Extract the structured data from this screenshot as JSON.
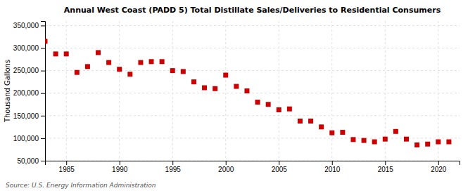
{
  "chart_data": {
    "type": "scatter",
    "title": "Annual West Coast (PADD 5) Total Distillate Sales/Deliveries to Residential Consumers",
    "ylabel": "Thousand Gallons",
    "source": "Source: U.S. Energy Information Administration",
    "color": "#cc0000",
    "marker": "square",
    "grid": true,
    "xlim": [
      1983.0,
      2022.0
    ],
    "ylim": [
      50000,
      360000
    ],
    "xticks": [
      1985,
      1990,
      1995,
      2000,
      2005,
      2010,
      2015,
      2020
    ],
    "yticks": [
      {
        "value": 50000,
        "label": "50,000"
      },
      {
        "value": 100000,
        "label": "100,000"
      },
      {
        "value": 150000,
        "label": "150,000"
      },
      {
        "value": 200000,
        "label": "200,000"
      },
      {
        "value": 250000,
        "label": "250,000"
      },
      {
        "value": 300000,
        "label": "300,000"
      },
      {
        "value": 350000,
        "label": "350,000"
      }
    ],
    "x": [
      1983,
      1984,
      1985,
      1986,
      1987,
      1988,
      1989,
      1990,
      1991,
      1992,
      1993,
      1994,
      1995,
      1996,
      1997,
      1998,
      1999,
      2000,
      2001,
      2002,
      2003,
      2004,
      2005,
      2006,
      2007,
      2008,
      2009,
      2010,
      2011,
      2012,
      2013,
      2014,
      2015,
      2016,
      2017,
      2018,
      2019,
      2020,
      2021
    ],
    "values": [
      315000,
      287000,
      287000,
      246000,
      259000,
      290000,
      268000,
      253000,
      242000,
      268000,
      270000,
      270000,
      250000,
      248000,
      225000,
      212000,
      210000,
      240000,
      215000,
      205000,
      180000,
      175000,
      163000,
      165000,
      138000,
      138000,
      125000,
      112000,
      113000,
      97000,
      95000,
      92000,
      98000,
      115000,
      98000,
      85000,
      87000,
      92000,
      92000
    ]
  }
}
